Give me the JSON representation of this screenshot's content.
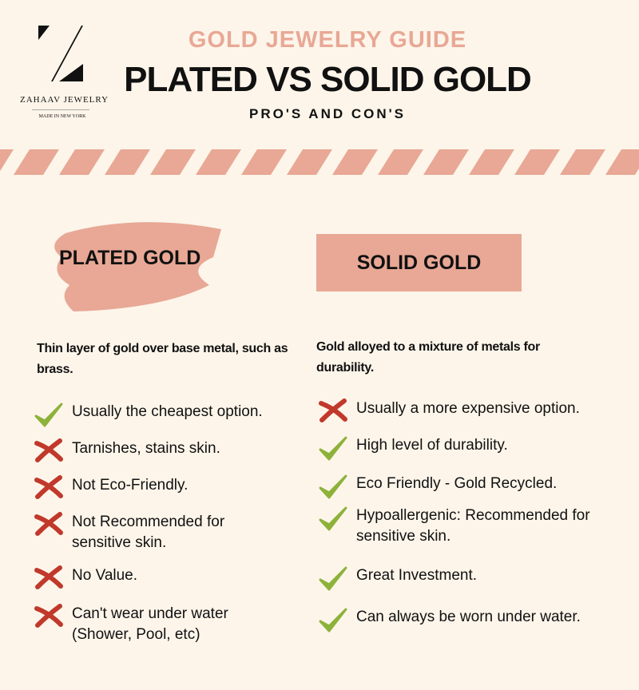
{
  "brand": {
    "logo_letter": "Z",
    "name": "ZAHAAV JEWELRY",
    "tagline": "MADE IN NEW YORK"
  },
  "header": {
    "kicker": "GOLD JEWELRY GUIDE",
    "title": "PLATED VS SOLID GOLD",
    "subtitle": "PRO'S AND CON'S"
  },
  "colors": {
    "accent": "#e8a895",
    "check": "#8db23a",
    "cross": "#c0392b",
    "background": "#fdf5ea"
  },
  "plated": {
    "heading": "PLATED GOLD",
    "description": "Thin layer of gold over base metal, such as brass.",
    "items": [
      {
        "icon": "check",
        "text": "Usually the cheapest option."
      },
      {
        "icon": "cross",
        "text": "Tarnishes, stains skin."
      },
      {
        "icon": "cross",
        "text": "Not Eco-Friendly."
      },
      {
        "icon": "cross",
        "text": "Not Recommended for sensitive skin."
      },
      {
        "icon": "cross",
        "text": "No Value."
      },
      {
        "icon": "cross",
        "text": "Can't wear under water (Shower, Pool, etc)"
      }
    ]
  },
  "solid": {
    "heading": "SOLID GOLD",
    "description": "Gold alloyed to a mixture of metals for durability.",
    "items": [
      {
        "icon": "cross",
        "text": "Usually a more expensive option."
      },
      {
        "icon": "check",
        "text": "High level of durability."
      },
      {
        "icon": "check",
        "text": "Eco Friendly - Gold Recycled."
      },
      {
        "icon": "check",
        "text": "Hypoallergenic: Recommended for sensitive skin."
      },
      {
        "icon": "check",
        "text": "Great Investment."
      },
      {
        "icon": "check",
        "text": "Can always be worn under water."
      }
    ]
  }
}
